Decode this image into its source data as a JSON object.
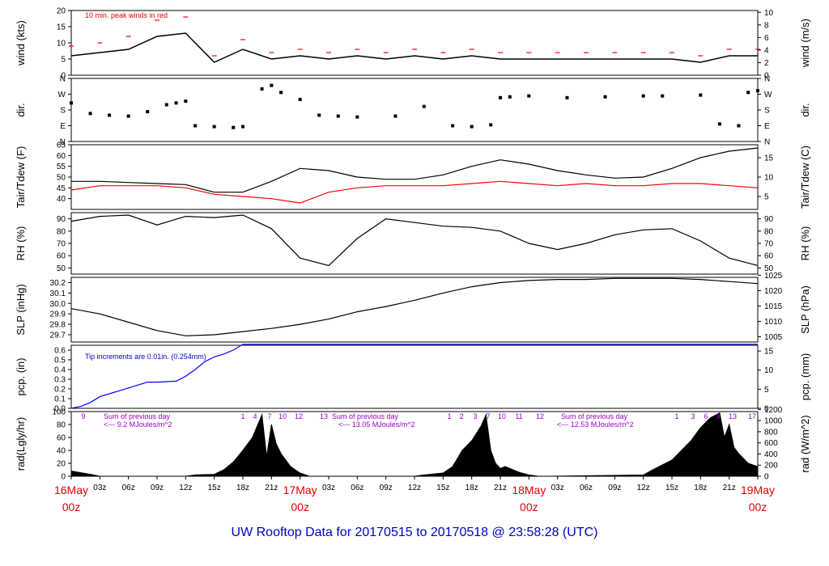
{
  "title": "UW Rooftop Data for 20170515  to  20170518 @ 23:58:28  (UTC)",
  "colors": {
    "series": "#000000",
    "dew": "#ff0000",
    "peak": "#ff0000",
    "precip": "#0000ff",
    "rad_note": "#9900cc",
    "date": "#e00000",
    "title": "#0000cc"
  },
  "x_axis": {
    "day_labels": [
      {
        "day": "16May",
        "hour": "00z"
      },
      {
        "day": "17May",
        "hour": "00z"
      },
      {
        "day": "18May",
        "hour": "00z"
      },
      {
        "day": "19May",
        "hour": "00z"
      }
    ],
    "hour_labels": [
      "03z",
      "06z",
      "09z",
      "12z",
      "15z",
      "18z",
      "21z"
    ]
  },
  "chart_data": [
    {
      "type": "line",
      "name": "wind",
      "ylabel": "wind (kts)",
      "ylabel_right": "wind (m/s)",
      "ylim": [
        0,
        20
      ],
      "yticks": [
        "0",
        "5",
        "10",
        "15",
        "20"
      ],
      "right_ylim": [
        0,
        10.29
      ],
      "right_ticks": [
        "0",
        "2",
        "4",
        "6",
        "8",
        "10"
      ],
      "annotation": "10 min. peak winds in red",
      "x_hours": [
        0,
        3,
        6,
        9,
        12,
        15,
        18,
        21,
        24,
        27,
        30,
        33,
        36,
        39,
        42,
        45,
        48,
        51,
        54,
        57,
        60,
        63,
        66,
        69,
        72
      ],
      "values": [
        6,
        7,
        8,
        12,
        13,
        4,
        8,
        5,
        6,
        5,
        6,
        5,
        6,
        5,
        6,
        5,
        5,
        5,
        5,
        5,
        5,
        5,
        4,
        6,
        6
      ],
      "peak_values": [
        9,
        10,
        12,
        17,
        18,
        6,
        11,
        7,
        8,
        7,
        8,
        7,
        8,
        7,
        8,
        7,
        7,
        7,
        7,
        7,
        7,
        7,
        6,
        8,
        8
      ]
    },
    {
      "type": "scatter",
      "name": "dir",
      "ylabel": "dir.",
      "ylabel_right": "dir.",
      "ylim": [
        0,
        360
      ],
      "yticks": [
        "N",
        "E",
        "S",
        "W",
        "N"
      ],
      "x_hours": [
        0,
        2,
        4,
        6,
        8,
        10,
        11,
        12,
        13,
        15,
        17,
        18,
        20,
        21,
        22,
        24,
        26,
        28,
        30,
        34,
        37,
        40,
        42,
        44,
        45,
        46,
        48,
        52,
        56,
        60,
        62,
        66,
        68,
        70,
        71,
        72
      ],
      "values": [
        220,
        160,
        150,
        145,
        170,
        210,
        220,
        230,
        90,
        85,
        80,
        85,
        300,
        320,
        280,
        240,
        150,
        145,
        140,
        145,
        200,
        90,
        85,
        95,
        250,
        255,
        260,
        250,
        255,
        260,
        260,
        265,
        100,
        90,
        280,
        290
      ]
    },
    {
      "type": "line",
      "name": "tair_tdew",
      "ylabel": "Tair/Tdew (F)",
      "ylabel_right": "Tair/Tdew (C)",
      "ylim": [
        35,
        65
      ],
      "yticks": [
        "40",
        "45",
        "50",
        "55",
        "60",
        "65"
      ],
      "right_ylim": [
        1.67,
        18.33
      ],
      "right_ticks": [
        "5",
        "10",
        "15"
      ],
      "x_hours": [
        0,
        3,
        6,
        9,
        12,
        15,
        18,
        21,
        24,
        27,
        30,
        33,
        36,
        39,
        42,
        45,
        48,
        51,
        54,
        57,
        60,
        63,
        66,
        69,
        72
      ],
      "series": [
        {
          "name": "Tair",
          "values": [
            48,
            48,
            47.5,
            47,
            46.5,
            43,
            43,
            48,
            54,
            53,
            50,
            49,
            49,
            51,
            55,
            58,
            56,
            53,
            51,
            49.5,
            50,
            54,
            59,
            62,
            63.5
          ]
        },
        {
          "name": "Tdew",
          "values": [
            44,
            46,
            46,
            46,
            45,
            42,
            41,
            40,
            38,
            43,
            45,
            46,
            46,
            46,
            47,
            48,
            47,
            46,
            47,
            46,
            46,
            47,
            47,
            46,
            45
          ]
        }
      ]
    },
    {
      "type": "line",
      "name": "rh",
      "ylabel": "RH (%)",
      "ylabel_right": "RH (%)",
      "ylim": [
        45,
        95
      ],
      "yticks": [
        "50",
        "60",
        "70",
        "80",
        "90"
      ],
      "right_ylim": [
        45,
        95
      ],
      "right_ticks": [
        "50",
        "60",
        "70",
        "80",
        "90"
      ],
      "x_hours": [
        0,
        3,
        6,
        9,
        12,
        15,
        18,
        21,
        24,
        27,
        30,
        33,
        36,
        39,
        42,
        45,
        48,
        51,
        54,
        57,
        60,
        63,
        66,
        69,
        72
      ],
      "values": [
        88,
        92,
        93,
        85,
        92,
        91,
        93,
        82,
        58,
        52,
        74,
        90,
        87,
        84,
        83,
        80,
        70,
        65,
        70,
        77,
        81,
        82,
        72,
        58,
        52
      ]
    },
    {
      "type": "line",
      "name": "slp",
      "ylabel": "SLP (inHg)",
      "ylabel_right": "SLP (hPa)",
      "ylim": [
        29.63,
        30.25
      ],
      "yticks": [
        "29.7",
        "29.8",
        "29.9",
        "30.0",
        "30.1",
        "30.2"
      ],
      "right_ylim": [
        1003.3,
        1024.3
      ],
      "right_ticks": [
        "1005",
        "1010",
        "1015",
        "1020",
        "1025"
      ],
      "x_hours": [
        0,
        3,
        6,
        9,
        12,
        15,
        18,
        21,
        24,
        27,
        30,
        33,
        36,
        39,
        42,
        45,
        48,
        51,
        54,
        57,
        60,
        63,
        66,
        69,
        72
      ],
      "values": [
        29.95,
        29.9,
        29.82,
        29.74,
        29.69,
        29.7,
        29.73,
        29.76,
        29.8,
        29.85,
        29.92,
        29.97,
        30.03,
        30.1,
        30.16,
        30.2,
        30.22,
        30.23,
        30.23,
        30.24,
        30.24,
        30.24,
        30.23,
        30.21,
        30.19
      ]
    },
    {
      "type": "line",
      "name": "pcp",
      "ylabel": "pcp. (in)",
      "ylabel_right": "pcp. (mm)",
      "ylim": [
        0,
        0.65
      ],
      "yticks": [
        "0.0",
        "0.1",
        "0.2",
        "0.3",
        "0.4",
        "0.5",
        "0.6"
      ],
      "right_ylim": [
        0,
        16.5
      ],
      "right_ticks": [
        "0",
        "5",
        "10",
        "15"
      ],
      "annotation": "Tip increments are 0.01in. (0.254mm)",
      "x_hours": [
        0,
        1,
        2,
        3,
        4,
        5,
        6,
        7,
        8,
        9,
        11,
        12,
        13,
        14,
        15,
        16,
        17,
        18,
        72
      ],
      "values": [
        0,
        0.02,
        0.06,
        0.12,
        0.15,
        0.18,
        0.21,
        0.24,
        0.27,
        0.27,
        0.28,
        0.33,
        0.4,
        0.48,
        0.53,
        0.56,
        0.6,
        0.66,
        0.66
      ]
    },
    {
      "type": "area",
      "name": "rad",
      "ylabel": "rad(Lgly/hr)",
      "ylabel_right": "rad (W/m^2)",
      "ylim": [
        0,
        100
      ],
      "yticks": [
        "0",
        "20",
        "40",
        "60",
        "80",
        "100"
      ],
      "right_ylim": [
        0,
        1163
      ],
      "right_ticks": [
        "0",
        "200",
        "400",
        "600",
        "800",
        "1000",
        "1200"
      ],
      "daily_notes": [
        "Sum of previous day",
        "<--- 9.2 MJoules/m^2",
        "Sum of previous day",
        "<--- 13.05 MJoules/m^2",
        "Sum of previous day",
        "<--- 12.53 MJoules/m^2"
      ],
      "hour_marks": [
        "9",
        "1",
        "4",
        "7",
        "10",
        "12",
        "13",
        "1",
        "2",
        "3",
        "7",
        "10",
        "11",
        "12",
        "1",
        "3",
        "6",
        "9",
        "13",
        "17"
      ],
      "x_hours": [
        0,
        2,
        3,
        12,
        13,
        15,
        16,
        17,
        18,
        19,
        20,
        20.5,
        21,
        21.5,
        22,
        23,
        24,
        25,
        36,
        37,
        39,
        40,
        41,
        42,
        43,
        43.5,
        44,
        44.5,
        45,
        45.5,
        46,
        47,
        48,
        49,
        50,
        60,
        61,
        63,
        64,
        65,
        66,
        67,
        68,
        68.5,
        69,
        69.5,
        70,
        71,
        72
      ],
      "values": [
        8,
        3,
        0,
        0,
        2,
        3,
        10,
        22,
        40,
        60,
        95,
        30,
        80,
        50,
        35,
        15,
        5,
        0,
        0,
        2,
        5,
        15,
        40,
        55,
        78,
        95,
        40,
        20,
        12,
        15,
        12,
        6,
        2,
        0,
        0,
        2,
        10,
        25,
        40,
        55,
        75,
        90,
        98,
        60,
        80,
        45,
        35,
        20,
        15
      ]
    }
  ]
}
